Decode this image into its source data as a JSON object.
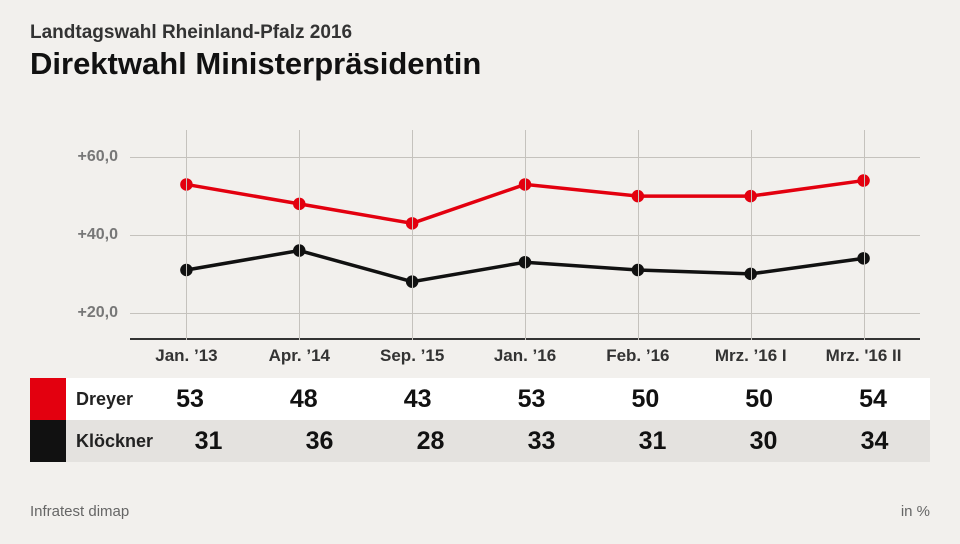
{
  "header": {
    "supertitle": "Landtagswahl Rheinland-Pfalz 2016",
    "title": "Direktwahl Ministerpräsidentin"
  },
  "footer": {
    "source": "Infratest dimap",
    "unit": "in %"
  },
  "chart": {
    "type": "line",
    "background_color": "#f2f0ed",
    "grid_color": "#c5c2bd",
    "axis_color": "#333333",
    "y": {
      "min": 13,
      "max": 67,
      "ticks": [
        20,
        40,
        60
      ],
      "tick_labels": [
        "+20,0",
        "+40,0",
        "+60,0"
      ],
      "tick_fontsize": 16,
      "tick_color": "#777777"
    },
    "categories": [
      "Jan. ’13",
      "Apr. ’14",
      "Sep. ’15",
      "Jan. ’16",
      "Feb. ’16",
      "Mrz. ’16 I",
      "Mrz. '16 II"
    ],
    "x_fontsize": 17,
    "series": [
      {
        "name": "Dreyer",
        "color": "#e3000f",
        "line_width": 3.5,
        "marker_radius": 5,
        "row_bg": "#ffffff",
        "values": [
          53,
          48,
          43,
          53,
          50,
          50,
          54
        ]
      },
      {
        "name": "Klöckner",
        "color": "#111111",
        "line_width": 3.5,
        "marker_radius": 5,
        "row_bg": "#e4e2df",
        "values": [
          31,
          36,
          28,
          33,
          31,
          30,
          34
        ]
      }
    ],
    "value_fontsize": 25
  }
}
